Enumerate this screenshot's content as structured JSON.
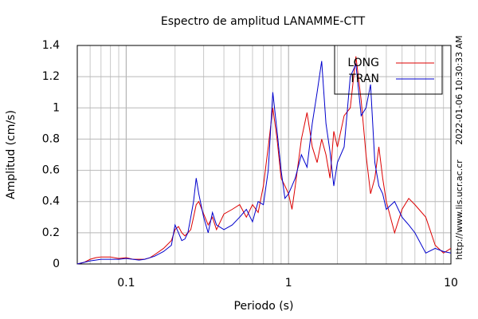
{
  "chart_data": {
    "type": "line",
    "title": "Espectro de amplitud LANAMME-CTT",
    "x_label": "Periodo (s)",
    "y_label": "Amplitud (cm/s)",
    "timestamp": "2022-01-06 10:30:33 AM",
    "source": "http://www.lis.ucr.ac.cr",
    "x": [
      0.05,
      0.055,
      0.06,
      0.065,
      0.07,
      0.08,
      0.09,
      0.1,
      0.11,
      0.12,
      0.13,
      0.14,
      0.15,
      0.17,
      0.19,
      0.2,
      0.21,
      0.22,
      0.23,
      0.24,
      0.25,
      0.26,
      0.27,
      0.28,
      0.3,
      0.32,
      0.34,
      0.36,
      0.4,
      0.45,
      0.5,
      0.55,
      0.6,
      0.65,
      0.7,
      0.75,
      0.8,
      0.85,
      0.9,
      0.95,
      1.0,
      1.05,
      1.1,
      1.2,
      1.3,
      1.4,
      1.5,
      1.6,
      1.7,
      1.8,
      1.9,
      2.0,
      2.2,
      2.4,
      2.6,
      2.8,
      3.0,
      3.2,
      3.4,
      3.6,
      3.8,
      4.0,
      4.5,
      5.0,
      5.5,
      6.0,
      7,
      8,
      9,
      10
    ],
    "series": [
      {
        "name": "LONG",
        "color": "#dd0000",
        "values": [
          0,
          0.01,
          0.03,
          0.04,
          0.045,
          0.045,
          0.035,
          0.04,
          0.03,
          0.03,
          0.03,
          0.04,
          0.06,
          0.1,
          0.15,
          0.22,
          0.24,
          0.2,
          0.18,
          0.2,
          0.22,
          0.3,
          0.38,
          0.4,
          0.32,
          0.25,
          0.3,
          0.22,
          0.32,
          0.35,
          0.38,
          0.3,
          0.38,
          0.33,
          0.5,
          0.75,
          1.0,
          0.8,
          0.55,
          0.5,
          0.45,
          0.35,
          0.5,
          0.8,
          0.97,
          0.75,
          0.65,
          0.8,
          0.7,
          0.55,
          0.85,
          0.75,
          0.95,
          1.0,
          1.33,
          1.05,
          0.7,
          0.45,
          0.55,
          0.75,
          0.55,
          0.4,
          0.2,
          0.35,
          0.42,
          0.38,
          0.3,
          0.12,
          0.07,
          0.1
        ]
      },
      {
        "name": "TRAN",
        "color": "#0000cc",
        "values": [
          0,
          0.01,
          0.02,
          0.025,
          0.03,
          0.03,
          0.03,
          0.035,
          0.03,
          0.025,
          0.03,
          0.04,
          0.05,
          0.08,
          0.12,
          0.25,
          0.2,
          0.15,
          0.16,
          0.2,
          0.3,
          0.4,
          0.55,
          0.45,
          0.3,
          0.2,
          0.33,
          0.25,
          0.22,
          0.25,
          0.3,
          0.35,
          0.27,
          0.4,
          0.38,
          0.6,
          1.1,
          0.85,
          0.6,
          0.42,
          0.45,
          0.5,
          0.55,
          0.7,
          0.62,
          0.9,
          1.1,
          1.3,
          0.9,
          0.72,
          0.5,
          0.65,
          0.75,
          1.2,
          1.28,
          0.95,
          1.0,
          1.15,
          0.65,
          0.5,
          0.45,
          0.35,
          0.4,
          0.3,
          0.25,
          0.2,
          0.07,
          0.1,
          0.08,
          0.07
        ]
      }
    ],
    "xlim": [
      0.05,
      10
    ],
    "xticks": [
      0.1,
      1,
      10
    ],
    "x_log": true,
    "ylim": [
      0,
      1.4
    ],
    "yticks": [
      0,
      0.2,
      0.4,
      0.6,
      0.8,
      1,
      1.2,
      1.4
    ],
    "grid": true,
    "legend": "upper right"
  }
}
